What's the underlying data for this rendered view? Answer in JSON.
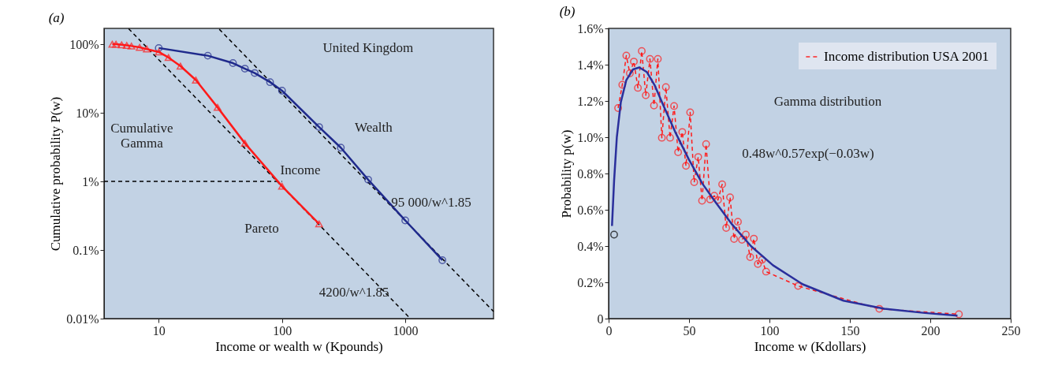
{
  "chart_data": [
    {
      "type": "line",
      "title": "(a)",
      "xlabel": "Income or wealth w (Kpounds)",
      "ylabel": "Cumulative probability P(w)",
      "log": "xy",
      "xlim": [
        3.6,
        5200
      ],
      "ylim": [
        0.01,
        170
      ],
      "xticks": [
        10,
        100,
        1000
      ],
      "yticks": [
        {
          "value": 0.01,
          "label": "0.01%"
        },
        {
          "value": 0.1,
          "label": "0.1%"
        },
        {
          "value": 1,
          "label": "1%"
        },
        {
          "value": 10,
          "label": "10%"
        },
        {
          "value": 100,
          "label": "100%"
        }
      ],
      "grid": false,
      "legend": false,
      "series": [
        {
          "color": "#000000",
          "marker": "none",
          "line_style": "dashed",
          "x": [
            5.7,
            1100
          ],
          "values": [
            168,
            0.01
          ]
        },
        {
          "color": "#000000",
          "marker": "none",
          "line_style": "dashed",
          "x": [
            31,
            5200
          ],
          "values": [
            165,
            0.0127
          ]
        },
        {
          "color": "#000000",
          "marker": "none",
          "line_style": "dashed",
          "x": [
            3.6,
            100
          ],
          "values": [
            1,
            1
          ]
        },
        {
          "color": "#1f2a8c",
          "marker": "circle",
          "line_style": "solid",
          "x": [
            10,
            25,
            40,
            50,
            60,
            80,
            100,
            200,
            300,
            500,
            1000,
            2000
          ],
          "values": [
            88,
            68,
            53,
            44,
            38,
            28,
            21,
            6.2,
            3.1,
            1.06,
            0.27,
            0.071
          ]
        },
        {
          "color": "#ff1a1a",
          "marker": "triangle",
          "line_style": "solid",
          "x": [
            4.2,
            4.5,
            5,
            5.5,
            6,
            7,
            8,
            10,
            12,
            15,
            20,
            30,
            50,
            100,
            200
          ],
          "values": [
            100,
            100,
            98,
            96,
            94,
            90,
            85,
            77,
            64,
            48,
            30,
            12,
            3.6,
            0.85,
            0.24
          ]
        }
      ],
      "annotations": [
        "United Kingdom",
        "Cumulative\nGamma",
        "Wealth",
        "Income",
        "Pareto",
        "95 000/w^1.85",
        "4200/w^1.85"
      ]
    },
    {
      "type": "line",
      "title": "(b)",
      "xlabel": "Income w (Kdollars)",
      "ylabel": "Probability p(w)",
      "xlim": [
        0,
        250
      ],
      "ylim": [
        0,
        1.6
      ],
      "xticks": [
        0,
        50,
        100,
        150,
        200,
        250
      ],
      "yticks": [
        0,
        {
          "value": 0.2,
          "label": "0.2%"
        },
        {
          "value": 0.4,
          "label": "0.4%"
        },
        {
          "value": 0.6,
          "label": "0.6%"
        },
        {
          "value": 0.8,
          "label": "0.8%"
        },
        {
          "value": 1.0,
          "label": "1.0%"
        },
        {
          "value": 1.2,
          "label": "1.2%"
        },
        {
          "value": 1.4,
          "label": "1.4%"
        },
        {
          "value": 1.6,
          "label": "1.6%"
        }
      ],
      "grid": false,
      "legend": "top right",
      "series": [
        {
          "name": "Income distribution USA 2001",
          "color": "#ff1a1a",
          "marker": "circle",
          "line_style": "dashed",
          "x": [
            5.9,
            8.5,
            11.0,
            13.2,
            15.7,
            18.2,
            20.6,
            23.1,
            25.7,
            28.2,
            30.6,
            33.1,
            35.6,
            38.2,
            40.7,
            43.2,
            45.8,
            48.1,
            50.7,
            53.2,
            55.7,
            58.1,
            60.6,
            63.1,
            65.7,
            68.0,
            70.6,
            73.1,
            75.5,
            78.0,
            80.4,
            82.9,
            85.3,
            88.0,
            90.3,
            92.8,
            95.4,
            97.9,
            117.8,
            168.3,
            217.8
          ],
          "values": [
            1.161,
            1.289,
            1.45,
            1.352,
            1.417,
            1.272,
            1.475,
            1.231,
            1.432,
            1.175,
            1.432,
            0.997,
            1.276,
            0.997,
            1.172,
            0.917,
            1.029,
            0.842,
            1.137,
            0.752,
            0.891,
            0.65,
            0.962,
            0.657,
            0.677,
            0.654,
            0.74,
            0.5,
            0.669,
            0.439,
            0.534,
            0.435,
            0.463,
            0.339,
            0.441,
            0.301,
            0.324,
            0.259,
            0.18,
            0.054,
            0.024
          ]
        },
        {
          "type": "scatter",
          "color": "#000000",
          "marker": "circle",
          "x": [
            3.4
          ],
          "values": [
            0.463
          ]
        },
        {
          "color": "#2a2f9c",
          "marker": "none",
          "line_style": "solid",
          "x": [
            2.1,
            3.4,
            5.1,
            7.6,
            11.0,
            15.2,
            19.1,
            23.7,
            28.7,
            34.6,
            41.4,
            49.8,
            58.3,
            66.7,
            76.8,
            88.6,
            102.2,
            120.7,
            146.0,
            171.4,
            196.7,
            216.9
          ],
          "values": [
            0.511,
            0.759,
            1.0,
            1.194,
            1.315,
            1.374,
            1.385,
            1.36,
            1.285,
            1.164,
            1.029,
            0.879,
            0.744,
            0.639,
            0.519,
            0.399,
            0.294,
            0.189,
            0.099,
            0.054,
            0.031,
            0.016
          ]
        }
      ],
      "annotations": [
        "Gamma distribution",
        "0.48w^0.57exp(−0.03w)"
      ]
    }
  ]
}
